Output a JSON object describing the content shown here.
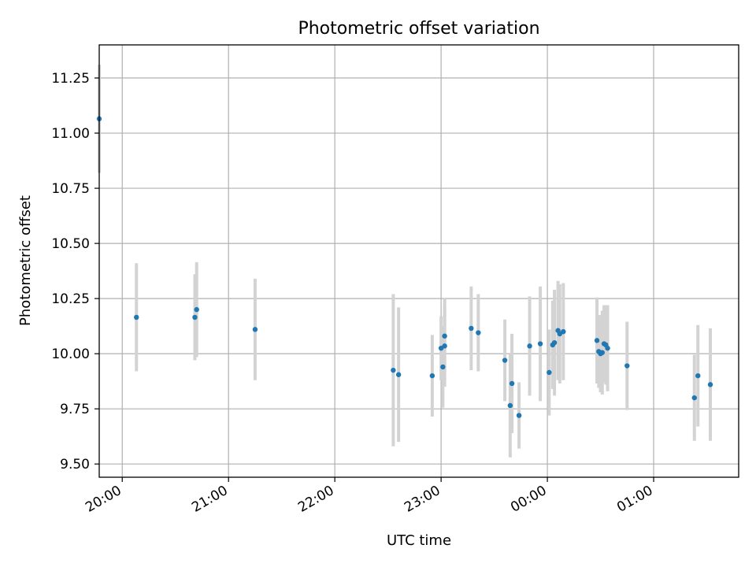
{
  "chart_data": {
    "type": "scatter",
    "title": "Photometric offset variation",
    "xlabel": "UTC time",
    "ylabel": "Photometric offset",
    "x_unit": "UTC time",
    "xlim": [
      "19:47",
      "01:48"
    ],
    "ylim": [
      9.44,
      11.4
    ],
    "x_ticks": [
      "20:00",
      "21:00",
      "22:00",
      "23:00",
      "00:00",
      "01:00"
    ],
    "y_ticks": [
      "9.50",
      "9.75",
      "10.00",
      "10.25",
      "10.50",
      "10.75",
      "11.00",
      "11.25"
    ],
    "y_tick_values": [
      9.5,
      9.75,
      10.0,
      10.25,
      10.5,
      10.75,
      11.0,
      11.25
    ],
    "grid": true,
    "point_color": "#1f77b4",
    "errorbar_color": "#d3d3d3",
    "series": [
      {
        "points": [
          {
            "t": "19:47",
            "y": 11.065,
            "err": 0.245
          },
          {
            "t": "20:08",
            "y": 10.165,
            "err": 0.245
          },
          {
            "t": "20:41",
            "y": 10.165,
            "err": 0.195
          },
          {
            "t": "20:42",
            "y": 10.2,
            "err": 0.215
          },
          {
            "t": "21:15",
            "y": 10.11,
            "err": 0.23
          },
          {
            "t": "22:33",
            "y": 9.925,
            "err": 0.345
          },
          {
            "t": "22:36",
            "y": 9.905,
            "err": 0.305
          },
          {
            "t": "22:55",
            "y": 9.9,
            "err": 0.185
          },
          {
            "t": "23:00",
            "y": 10.025,
            "err": 0.145
          },
          {
            "t": "23:01",
            "y": 9.94,
            "err": 0.185
          },
          {
            "t": "23:02",
            "y": 10.035,
            "err": 0.185
          },
          {
            "t": "23:02",
            "y": 10.08,
            "err": 0.17
          },
          {
            "t": "23:17",
            "y": 10.115,
            "err": 0.19
          },
          {
            "t": "23:21",
            "y": 10.095,
            "err": 0.175
          },
          {
            "t": "23:36",
            "y": 9.97,
            "err": 0.185
          },
          {
            "t": "23:39",
            "y": 9.765,
            "err": 0.235
          },
          {
            "t": "23:40",
            "y": 9.865,
            "err": 0.225
          },
          {
            "t": "23:44",
            "y": 9.72,
            "err": 0.15
          },
          {
            "t": "23:50",
            "y": 10.035,
            "err": 0.225
          },
          {
            "t": "23:56",
            "y": 10.045,
            "err": 0.26
          },
          {
            "t": "00:01",
            "y": 9.915,
            "err": 0.195
          },
          {
            "t": "00:03",
            "y": 10.04,
            "err": 0.2
          },
          {
            "t": "00:04",
            "y": 10.05,
            "err": 0.24
          },
          {
            "t": "00:06",
            "y": 10.105,
            "err": 0.225
          },
          {
            "t": "00:07",
            "y": 10.09,
            "err": 0.225
          },
          {
            "t": "00:09",
            "y": 10.1,
            "err": 0.22
          },
          {
            "t": "00:28",
            "y": 10.06,
            "err": 0.195
          },
          {
            "t": "00:29",
            "y": 10.01,
            "err": 0.165
          },
          {
            "t": "00:30",
            "y": 10.0,
            "err": 0.175
          },
          {
            "t": "00:31",
            "y": 10.005,
            "err": 0.19
          },
          {
            "t": "00:32",
            "y": 10.045,
            "err": 0.175
          },
          {
            "t": "00:33",
            "y": 10.04,
            "err": 0.18
          },
          {
            "t": "00:34",
            "y": 10.025,
            "err": 0.195
          },
          {
            "t": "00:45",
            "y": 9.945,
            "err": 0.2
          },
          {
            "t": "01:23",
            "y": 9.8,
            "err": 0.195
          },
          {
            "t": "01:25",
            "y": 9.9,
            "err": 0.23
          },
          {
            "t": "01:32",
            "y": 9.86,
            "err": 0.255
          }
        ]
      }
    ]
  }
}
